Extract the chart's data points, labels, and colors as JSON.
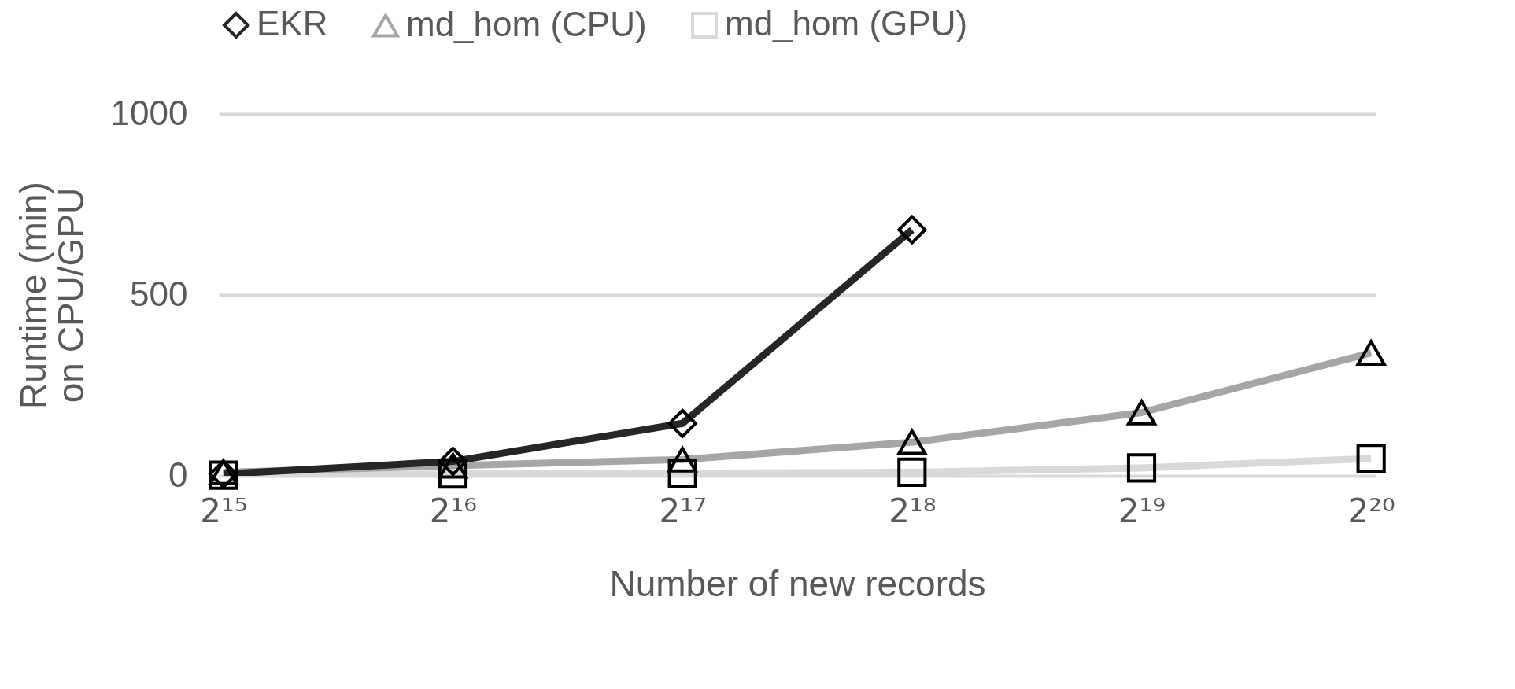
{
  "chart_data": {
    "type": "line",
    "xlabel": "Number of new records",
    "ylabel": "Runtime (min) on CPU/GPU",
    "categories": [
      "2¹⁵",
      "2¹⁶",
      "2¹⁷",
      "2¹⁸",
      "2¹⁹",
      "2²⁰"
    ],
    "series": [
      {
        "name": "EKR",
        "color": "#262626",
        "marker": "diamond",
        "values": [
          5,
          40,
          145,
          680,
          null,
          null
        ]
      },
      {
        "name": "md_hom (CPU)",
        "color": "#a6a6a6",
        "marker": "triangle",
        "values": [
          10,
          28,
          45,
          93,
          175,
          340
        ]
      },
      {
        "name": "md_hom (GPU)",
        "color": "#d9d9d9",
        "marker": "square",
        "values": [
          2,
          5,
          7,
          10,
          22,
          48
        ]
      }
    ],
    "ylim": [
      0,
      1000
    ],
    "yticks": [
      0,
      500,
      {
        "value": 1000,
        "label": "1000"
      }
    ],
    "grid": "y",
    "legend": "top"
  }
}
